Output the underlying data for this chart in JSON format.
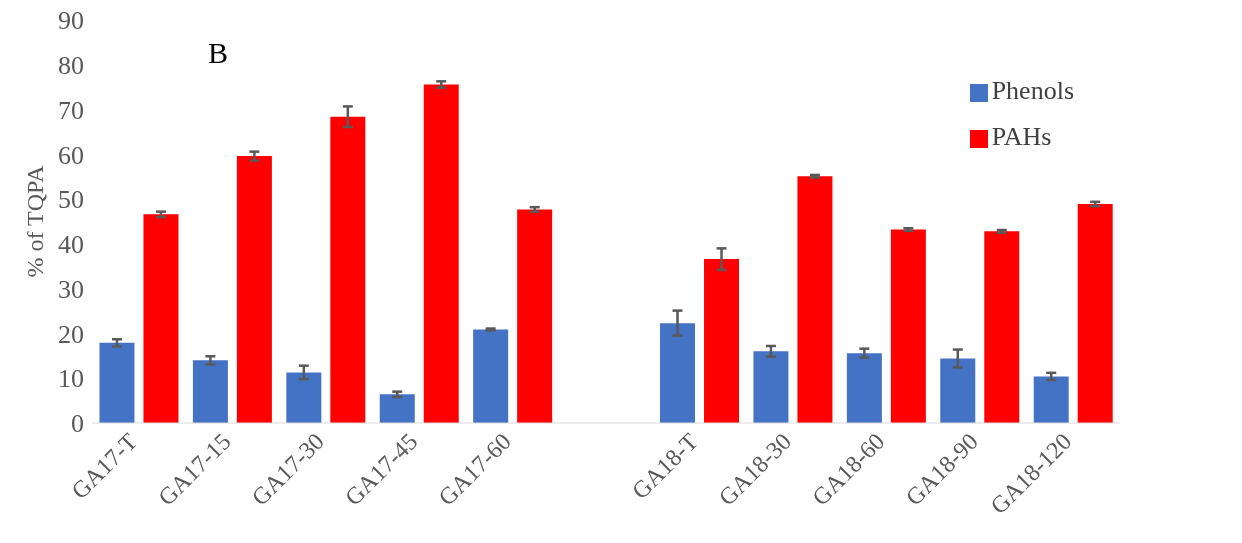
{
  "chart_data": {
    "type": "bar",
    "ylabel": "% of TQPA",
    "annotations": [
      "B"
    ],
    "categories": [
      "GA17-T",
      "GA17-15",
      "GA17-30",
      "GA17-45",
      "GA17-60",
      null,
      "GA18-T",
      "GA18-30",
      "GA18-60",
      "GA18-90",
      "GA18-120"
    ],
    "series": [
      {
        "name": "Phenols",
        "color": "#4472c4",
        "values": [
          17.9,
          14,
          11.3,
          6.4,
          20.9,
          null,
          22.3,
          16,
          15.6,
          14.4,
          10.4
        ],
        "errors": [
          0.8,
          0.9,
          1.5,
          0.6,
          0.2,
          null,
          2.8,
          1.2,
          1.0,
          2.0,
          0.8
        ]
      },
      {
        "name": "PAHs",
        "color": "#ff0000",
        "values": [
          46.6,
          59.6,
          68.4,
          75.6,
          47.7,
          null,
          36.6,
          55.1,
          43.2,
          42.8,
          48.9
        ],
        "errors": [
          0.6,
          1.0,
          2.3,
          0.7,
          0.5,
          null,
          2.4,
          0.3,
          0.3,
          0.3,
          0.5
        ]
      }
    ],
    "ylim": [
      0,
      90
    ],
    "yticks": [
      0,
      10,
      20,
      30,
      40,
      50,
      60,
      70,
      80,
      90
    ],
    "grid": false,
    "legend": "top right"
  }
}
